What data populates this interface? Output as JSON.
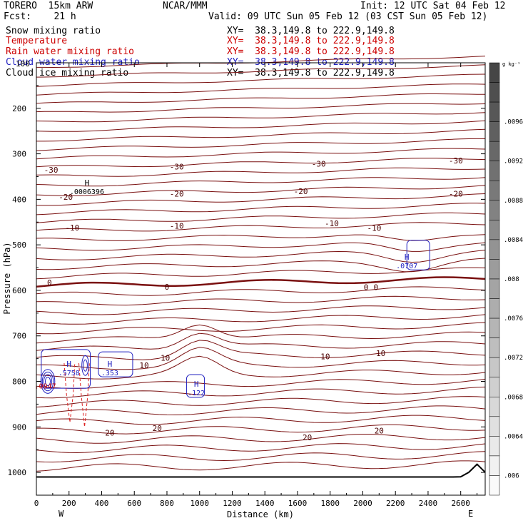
{
  "header": {
    "model": "TORERO  15km ARW",
    "center": "NCAR/MMM",
    "init": "Init: 12 UTC Sat 04 Feb 12",
    "fcst": "Fcst:    21 h",
    "valid": "Valid: 09 UTC Sun 05 Feb 12 (03 CST Sun 05 Feb 12)"
  },
  "fields": [
    {
      "name": "Snow mixing ratio",
      "color": "#000000",
      "xy": "XY=  38.3,149.8 to 222.9,149.8"
    },
    {
      "name": "Temperature",
      "color": "#cc0000",
      "xy": "XY=  38.3,149.8 to 222.9,149.8"
    },
    {
      "name": "Rain water mixing ratio",
      "color": "#cc0000",
      "xy": "XY=  38.3,149.8 to 222.9,149.8"
    },
    {
      "name": "Cloud water mixing ratio",
      "color": "#2020c0",
      "xy": "XY=  38.3,149.8 to 222.9,149.8"
    },
    {
      "name": "Cloud ice mixing ratio",
      "color": "#000000",
      "xy": "XY=  38.3,149.8 to 222.9,149.8"
    }
  ],
  "chart_data": {
    "type": "line",
    "xlabel": "Distance (km)",
    "ylabel": "Pressure (hPa)",
    "xlim": [
      0,
      2750
    ],
    "ylim": [
      1050,
      100
    ],
    "x_ticks": [
      0,
      200,
      400,
      600,
      800,
      1000,
      1200,
      1400,
      1600,
      1800,
      2000,
      2200,
      2400,
      2600
    ],
    "y_ticks": [
      200,
      300,
      400,
      500,
      600,
      700,
      800,
      900,
      1000
    ],
    "y_top_label": "100",
    "x_end_labels": {
      "left": "W",
      "right": "E"
    },
    "colorbar": {
      "unit": "g kg⁻¹",
      "labels": [
        ".0096",
        ".0092",
        ".0088",
        ".0084",
        ".008",
        ".0076",
        ".0072",
        ".0068",
        ".0064",
        ".006"
      ],
      "range": [
        0.0058,
        0.0102
      ]
    },
    "temperature_labels": [
      {
        "text": "-30",
        "x": 90,
        "p": 335
      },
      {
        "text": "-30",
        "x": 860,
        "p": 328
      },
      {
        "text": "-30",
        "x": 1730,
        "p": 322
      },
      {
        "text": "-30",
        "x": 2570,
        "p": 315
      },
      {
        "text": "-20",
        "x": 180,
        "p": 395
      },
      {
        "text": "-20",
        "x": 860,
        "p": 388
      },
      {
        "text": "-20",
        "x": 1620,
        "p": 382
      },
      {
        "text": "-20",
        "x": 2570,
        "p": 388
      },
      {
        "text": "-10",
        "x": 220,
        "p": 462
      },
      {
        "text": "-10",
        "x": 860,
        "p": 458
      },
      {
        "text": "-10",
        "x": 1810,
        "p": 453
      },
      {
        "text": "-10",
        "x": 2070,
        "p": 463
      },
      {
        "text": "0",
        "x": 80,
        "p": 583
      },
      {
        "text": "0",
        "x": 800,
        "p": 592
      },
      {
        "text": "0",
        "x": 2020,
        "p": 593
      },
      {
        "text": "0",
        "x": 2080,
        "p": 593
      },
      {
        "text": "10",
        "x": 660,
        "p": 765
      },
      {
        "text": "10",
        "x": 790,
        "p": 748
      },
      {
        "text": "10",
        "x": 1770,
        "p": 745
      },
      {
        "text": "10",
        "x": 2110,
        "p": 738
      },
      {
        "text": "20",
        "x": 450,
        "p": 913
      },
      {
        "text": "20",
        "x": 740,
        "p": 903
      },
      {
        "text": "20",
        "x": 1660,
        "p": 923
      },
      {
        "text": "20",
        "x": 2100,
        "p": 908
      }
    ],
    "maxima": [
      {
        "text": "H",
        "value": ".0006396",
        "x": 310,
        "p": 370,
        "color": "#000000"
      },
      {
        "text": "H",
        "value": ".0707",
        "x": 2270,
        "p": 533,
        "color": "#2020c0"
      },
      {
        "text": "H",
        "value": ".5758",
        "x": 200,
        "p": 768,
        "color": "#2020c0"
      },
      {
        "text": "H",
        "value": ".353",
        "x": 450,
        "p": 768,
        "color": "#2020c0"
      },
      {
        "text": "H",
        "value": ".122",
        "x": 980,
        "p": 812,
        "color": "#2020c0"
      },
      {
        "text": "",
        "value": ".0947",
        "x": 55,
        "p": 797,
        "color": "#cc0000"
      }
    ]
  }
}
